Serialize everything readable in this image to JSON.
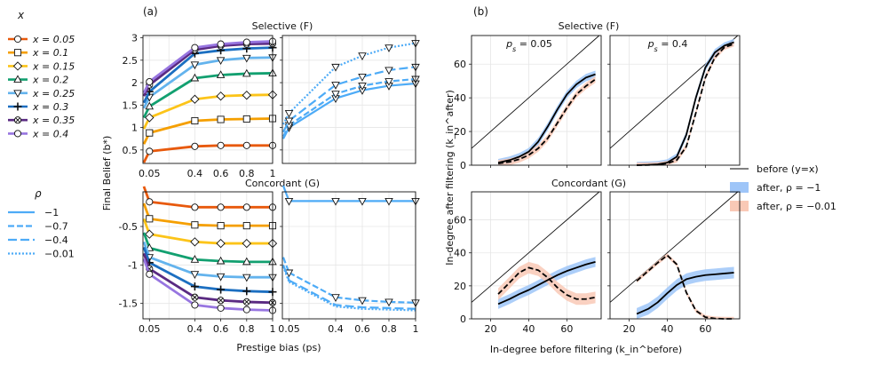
{
  "legend_x": {
    "title": "x",
    "entries": [
      {
        "label": "x = 0.05",
        "color": "#e8590c",
        "marker": "circle"
      },
      {
        "label": "x = 0.1",
        "color": "#f59f00",
        "marker": "square"
      },
      {
        "label": "x = 0.15",
        "color": "#fcc419",
        "marker": "diamond"
      },
      {
        "label": "x = 0.2",
        "color": "#12a070",
        "marker": "triangle-up"
      },
      {
        "label": "x = 0.25",
        "color": "#63b3ed",
        "marker": "triangle-down"
      },
      {
        "label": "x = 0.3",
        "color": "#1c6fc1",
        "marker": "plus"
      },
      {
        "label": "x = 0.35",
        "color": "#5a2a82",
        "marker": "x"
      },
      {
        "label": "x = 0.4",
        "color": "#9775e0",
        "marker": "circle"
      }
    ]
  },
  "legend_rho": {
    "title": "ρ",
    "color": "#4dabf7",
    "entries": [
      {
        "label": "−1",
        "dash": "solid"
      },
      {
        "label": "−0.7",
        "dash": "dash"
      },
      {
        "label": "−0.4",
        "dash": "longdash"
      },
      {
        "label": "−0.01",
        "dash": "dot"
      }
    ]
  },
  "legend_b": {
    "entries": [
      {
        "label": "before (y=x)",
        "kind": "line",
        "color": "#000000"
      },
      {
        "label": "after, ρ = −1",
        "kind": "band",
        "color": "#9ec5f8"
      },
      {
        "label": "after, ρ = −0.01",
        "kind": "band",
        "color": "#f9c9b6"
      }
    ]
  },
  "panel_labels": {
    "a": "(a)",
    "b": "(b)"
  },
  "row_titles": {
    "a_top": "Selective (F)",
    "a_bottom": "Concordant (G)",
    "b_top": "Selective (F)",
    "b_bottom": "Concordant (G)"
  },
  "axes_text": {
    "a_ylabel": "Final Belief (b*)",
    "a_xlabel": "Prestige bias (ps)",
    "b_ylabel": "In-degree after filtering (k_in^after)",
    "b_xlabel": "In-degree before filtering (k_in^before)",
    "ps_005": "ps = 0.05",
    "ps_04": "ps = 0.4"
  },
  "chart_data": [
    {
      "panel": "a-top-left",
      "type": "line",
      "title": "Selective (F)",
      "x": [
        0.05,
        0.4,
        0.6,
        0.8,
        1
      ],
      "xticks": [
        "0.05",
        "0.4",
        "0.6",
        "0.8",
        "1"
      ],
      "xlim": [
        0,
        1
      ],
      "ylim": [
        0.2,
        3.05
      ],
      "yticks": [
        0.5,
        1,
        1.5,
        2,
        2.5,
        3
      ],
      "ytick_labels": [
        "0.5",
        "1",
        "1.5",
        "2",
        "2.5",
        "3"
      ],
      "series": [
        {
          "name": "x = 0.05",
          "values": [
            0.47,
            0.58,
            0.6,
            0.6,
            0.6
          ]
        },
        {
          "name": "x = 0.1",
          "values": [
            0.88,
            1.15,
            1.18,
            1.19,
            1.2
          ]
        },
        {
          "name": "x = 0.15",
          "values": [
            1.22,
            1.63,
            1.7,
            1.72,
            1.73
          ]
        },
        {
          "name": "x = 0.2",
          "values": [
            1.47,
            2.1,
            2.17,
            2.2,
            2.21
          ]
        },
        {
          "name": "x = 0.25",
          "values": [
            1.68,
            2.4,
            2.5,
            2.55,
            2.56
          ]
        },
        {
          "name": "x = 0.3",
          "values": [
            1.8,
            2.65,
            2.72,
            2.76,
            2.78
          ]
        },
        {
          "name": "x = 0.35",
          "values": [
            1.95,
            2.73,
            2.82,
            2.86,
            2.87
          ]
        },
        {
          "name": "x = 0.4",
          "values": [
            2.02,
            2.78,
            2.86,
            2.9,
            2.92
          ]
        }
      ]
    },
    {
      "panel": "a-top-right",
      "type": "line",
      "x": [
        0.05,
        0.4,
        0.6,
        0.8,
        1
      ],
      "xlim": [
        0,
        1
      ],
      "ylim": [
        0.2,
        3.05
      ],
      "series": [
        {
          "name": "−1",
          "values": [
            1.0,
            1.65,
            1.83,
            1.93,
            1.98
          ]
        },
        {
          "name": "−0.7",
          "values": [
            1.05,
            1.75,
            1.93,
            2.03,
            2.08
          ]
        },
        {
          "name": "−0.4",
          "values": [
            1.15,
            1.95,
            2.13,
            2.28,
            2.35
          ]
        },
        {
          "name": "−0.01",
          "values": [
            1.32,
            2.35,
            2.6,
            2.78,
            2.88
          ]
        }
      ]
    },
    {
      "panel": "a-bottom-left",
      "type": "line",
      "title": "Concordant (G)",
      "x": [
        0.05,
        0.4,
        0.6,
        0.8,
        1
      ],
      "xticks": [
        "0.05",
        "0.4",
        "0.6",
        "0.8",
        "1"
      ],
      "xlim": [
        0,
        1
      ],
      "ylim": [
        -1.7,
        -0.05
      ],
      "yticks": [
        -0.5,
        -1,
        -1.5
      ],
      "ytick_labels": [
        "-0.5",
        "-1",
        "-1.5"
      ],
      "series": [
        {
          "name": "x = 0.05",
          "values": [
            -0.18,
            -0.25,
            -0.25,
            -0.25,
            -0.25
          ]
        },
        {
          "name": "x = 0.1",
          "values": [
            -0.4,
            -0.48,
            -0.49,
            -0.49,
            -0.49
          ]
        },
        {
          "name": "x = 0.15",
          "values": [
            -0.6,
            -0.7,
            -0.72,
            -0.72,
            -0.72
          ]
        },
        {
          "name": "x = 0.2",
          "values": [
            -0.78,
            -0.93,
            -0.95,
            -0.96,
            -0.96
          ]
        },
        {
          "name": "x = 0.25",
          "values": [
            -0.9,
            -1.12,
            -1.15,
            -1.16,
            -1.16
          ]
        },
        {
          "name": "x = 0.3",
          "values": [
            -0.97,
            -1.28,
            -1.32,
            -1.34,
            -1.35
          ]
        },
        {
          "name": "x = 0.35",
          "values": [
            -1.05,
            -1.42,
            -1.46,
            -1.48,
            -1.49
          ]
        },
        {
          "name": "x = 0.4",
          "values": [
            -1.12,
            -1.52,
            -1.56,
            -1.58,
            -1.59
          ]
        }
      ]
    },
    {
      "panel": "a-bottom-right",
      "type": "line",
      "x": [
        0.05,
        0.4,
        0.6,
        0.8,
        1
      ],
      "xticks": [
        "0.05",
        "0.4",
        "0.6",
        "0.8",
        "1"
      ],
      "xlim": [
        0,
        1
      ],
      "ylim": [
        -1.7,
        -0.05
      ],
      "series": [
        {
          "name": "−1",
          "values": [
            -0.17,
            -0.17,
            -0.17,
            -0.17,
            -0.17
          ]
        },
        {
          "name": "−0.7",
          "values": [
            -1.1,
            -1.42,
            -1.46,
            -1.48,
            -1.49
          ]
        },
        {
          "name": "−0.4",
          "values": [
            -1.2,
            -1.52,
            -1.55,
            -1.56,
            -1.57
          ]
        },
        {
          "name": "−0.01",
          "values": [
            -1.22,
            -1.54,
            -1.57,
            -1.58,
            -1.59
          ]
        }
      ]
    },
    {
      "panel": "b-top-left",
      "type": "line",
      "subtitle": "ps = 0.05",
      "xlim": [
        10,
        78
      ],
      "ylim": [
        0,
        77
      ],
      "yticks": [
        0,
        20,
        40,
        60
      ],
      "x": [
        24,
        30,
        35,
        40,
        45,
        50,
        55,
        60,
        65,
        70,
        75
      ],
      "series": [
        {
          "name": "after, ρ = −1",
          "values": [
            1.5,
            3,
            5,
            8,
            14,
            23,
            33,
            42,
            48,
            52,
            54
          ]
        },
        {
          "name": "after, ρ = −0.01",
          "values": [
            1,
            2,
            3.5,
            6,
            10,
            16,
            25,
            34,
            42,
            47,
            51
          ]
        }
      ],
      "band_halfwidth": {
        "after, ρ = −1": 2.2,
        "after, ρ = −0.01": 2.0
      }
    },
    {
      "panel": "b-top-right",
      "type": "line",
      "subtitle": "ps = 0.4",
      "xlim": [
        10,
        78
      ],
      "ylim": [
        0,
        77
      ],
      "x": [
        24,
        30,
        35,
        40,
        45,
        50,
        55,
        60,
        65,
        70,
        75
      ],
      "series": [
        {
          "name": "after, ρ = −1",
          "values": [
            0,
            0.2,
            0.5,
            1.5,
            5,
            18,
            40,
            58,
            67,
            71,
            73
          ]
        },
        {
          "name": "after, ρ = −0.01",
          "values": [
            0,
            0.1,
            0.3,
            1,
            3,
            11,
            31,
            52,
            64,
            70,
            72
          ]
        }
      ],
      "band_halfwidth": {
        "after, ρ = −1": 2.0,
        "after, ρ = −0.01": 1.5
      }
    },
    {
      "panel": "b-bottom-left",
      "type": "line",
      "xticks": [
        20,
        40,
        60
      ],
      "xlim": [
        10,
        78
      ],
      "ylim": [
        0,
        77
      ],
      "yticks": [
        0,
        20,
        40,
        60
      ],
      "x": [
        24,
        30,
        35,
        40,
        45,
        50,
        55,
        60,
        65,
        70,
        75
      ],
      "series": [
        {
          "name": "after, ρ = −1",
          "values": [
            9,
            12,
            15,
            17.5,
            20.5,
            23.5,
            26.5,
            29,
            31,
            33,
            34.5
          ]
        },
        {
          "name": "after, ρ = −0.01",
          "values": [
            15,
            22,
            28,
            31,
            29.5,
            25,
            19,
            14.5,
            12,
            12,
            13
          ]
        }
      ],
      "band_halfwidth": {
        "after, ρ = −1": 3.0,
        "after, ρ = −0.01": 3.5
      }
    },
    {
      "panel": "b-bottom-right",
      "type": "line",
      "xticks": [
        20,
        40,
        60
      ],
      "xlim": [
        10,
        78
      ],
      "ylim": [
        0,
        77
      ],
      "x": [
        24,
        30,
        35,
        40,
        45,
        50,
        55,
        60,
        65,
        70,
        75
      ],
      "series": [
        {
          "name": "after, ρ = −1",
          "values": [
            3,
            6,
            10,
            15.5,
            20.5,
            24,
            25.5,
            26.5,
            27,
            27.5,
            28
          ]
        },
        {
          "name": "after, ρ = −0.01",
          "values": [
            23,
            29,
            34,
            38.5,
            33,
            16,
            5,
            1,
            0.2,
            0,
            0
          ]
        }
      ],
      "band_halfwidth": {
        "after, ρ = −1": 3.5,
        "after, ρ = −0.01": 1.2
      }
    }
  ]
}
